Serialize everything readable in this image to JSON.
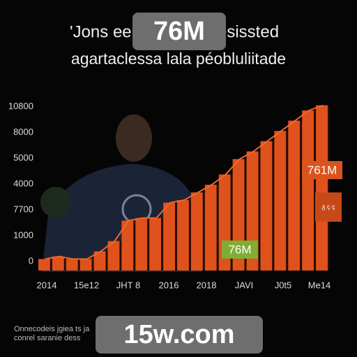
{
  "chart_data": {
    "type": "bar",
    "title": [
      "'Jons ee",
      "esissted"
    ],
    "subtitle": "agartaclessa lala péobluliitade",
    "badge_top": "76M",
    "y_labels": [
      "0",
      "1000",
      "7700",
      "4000",
      "5000",
      "8000",
      "10800"
    ],
    "x_labels": [
      "2014",
      "15e12",
      "JHT 8",
      "2016",
      "2018",
      "JAVI",
      "J0t5",
      "Me14"
    ],
    "values": [
      0.1,
      0.2,
      0.1,
      0.1,
      0.4,
      0.8,
      1.6,
      1.7,
      1.7,
      2.3,
      2.4,
      2.7,
      3.0,
      3.4,
      4.0,
      4.3,
      4.7,
      5.1,
      5.5,
      5.9,
      6.1
    ],
    "ylim": [
      -0.35,
      6.4
    ],
    "color": "#e0521c",
    "annotations": [
      "761M",
      "76M",
      "ᵹ ç ç"
    ],
    "footer": [
      "Onnecodeis jgiea ts ja",
      "conrel saranie dess"
    ],
    "badge_bottom": "15w.com"
  }
}
